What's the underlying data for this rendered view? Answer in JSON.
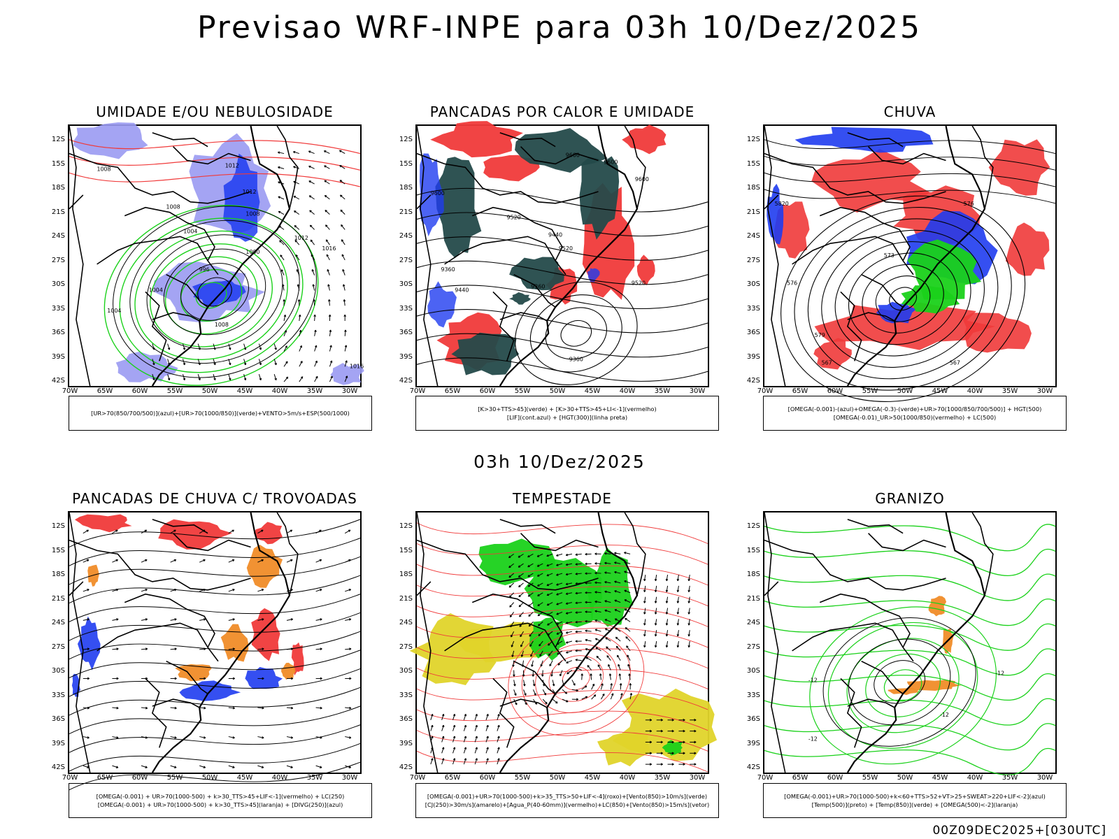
{
  "main_title": "Previsao WRF-INPE  para 03h 10/Dez/2025",
  "mid_title": "03h 10/Dez/2025",
  "footer": "00Z09DEC2025+[030UTC]",
  "lat_ticks": [
    "12S",
    "15S",
    "18S",
    "21S",
    "24S",
    "27S",
    "30S",
    "33S",
    "36S",
    "39S",
    "42S"
  ],
  "lon_ticks": [
    "70W",
    "65W",
    "60W",
    "55W",
    "50W",
    "45W",
    "40W",
    "35W",
    "30W"
  ],
  "colors": {
    "blue": "#1f3cf0",
    "lavender": "#9a9af2",
    "green": "#1ad11a",
    "red": "#f03a3a",
    "dark_teal": "#244a4a",
    "orange": "#f08c28",
    "yellow": "#e0d42a",
    "black": "#000000"
  },
  "panels": [
    {
      "id": "umidade",
      "title": "UMIDADE E/OU NEBULOSIDADE",
      "legend": [
        "[UR>70(850/700/500)](azul)+[UR>70(1000/850)](verde)+VENTO>5m/s+ESP(500/1000)"
      ],
      "contour_labels": [
        "1008",
        "1012",
        "1012",
        "1008",
        "1004",
        "1000",
        "1004",
        "1008",
        "1004",
        "1012",
        "1016",
        "1016",
        "996",
        "1008"
      ]
    },
    {
      "id": "pancadas-calor",
      "title": "PANCADAS POR CALOR E UMIDADE",
      "legend": [
        "[K>30+TTS>45](verde) + [K>30+TTS>45+LI<-1](vermelho)",
        "[LIF](cont.azul) + [HGT(300)](linha preta)"
      ],
      "contour_labels": [
        "9600",
        "9600",
        "9600",
        "9600",
        "9520",
        "9440",
        "9520",
        "9360",
        "9360",
        "9440",
        "9520",
        "9360"
      ]
    },
    {
      "id": "chuva",
      "title": "CHUVA",
      "legend": [
        "[OMEGA(-0.001)-(azul)+OMEGA(-0.3)-(verde)+UR>70(1000/850/700/500)] + HGT(500)",
        "[OMEGA(-0.01)_UR>50(1000/850)(vermelho) + LC(500)"
      ],
      "contour_labels": [
        "5820",
        "576",
        "573",
        "576",
        "579",
        "567",
        "567"
      ]
    },
    {
      "id": "pancadas-trovoadas",
      "title": "PANCADAS DE CHUVA C/ TROVOADAS",
      "legend": [
        "[OMEGA(-0.001) + UR>70(1000-500) + k>30_TTS>45+LIF<-1](vermelho) + LC(250)",
        "[OMEGA(-0.001) + UR>70(1000-500) + k>30_TTS>45](laranja) + [DIVG(250)](azul)"
      ],
      "contour_labels": []
    },
    {
      "id": "tempestade",
      "title": "TEMPESTADE",
      "legend": [
        "[OMEGA(-0.001)+UR>70(1000-500)+k>35_TTS>50+LIF<-4](roxo)+[Vento(850)>10m/s](verde)",
        "[CJ(250)>30m/s](amarelo)+[Agua_P(40-60mm)](vermelho)+LC(850)+[Vento(850)>15m/s](vetor)"
      ],
      "contour_labels": []
    },
    {
      "id": "granizo",
      "title": "GRANIZO",
      "legend": [
        "[OMEGA(-0.001)+UR>70(1000-500)+k<60+TTS>52+VT>25+SWEAT>220+LIF<-2](azul)",
        "[Temp(500)](preto) + [Temp(850)](verde) + [OMEGA(500)<-2](laranja)"
      ],
      "contour_labels": [
        "-12",
        "-12",
        "-12",
        "-12"
      ]
    }
  ]
}
